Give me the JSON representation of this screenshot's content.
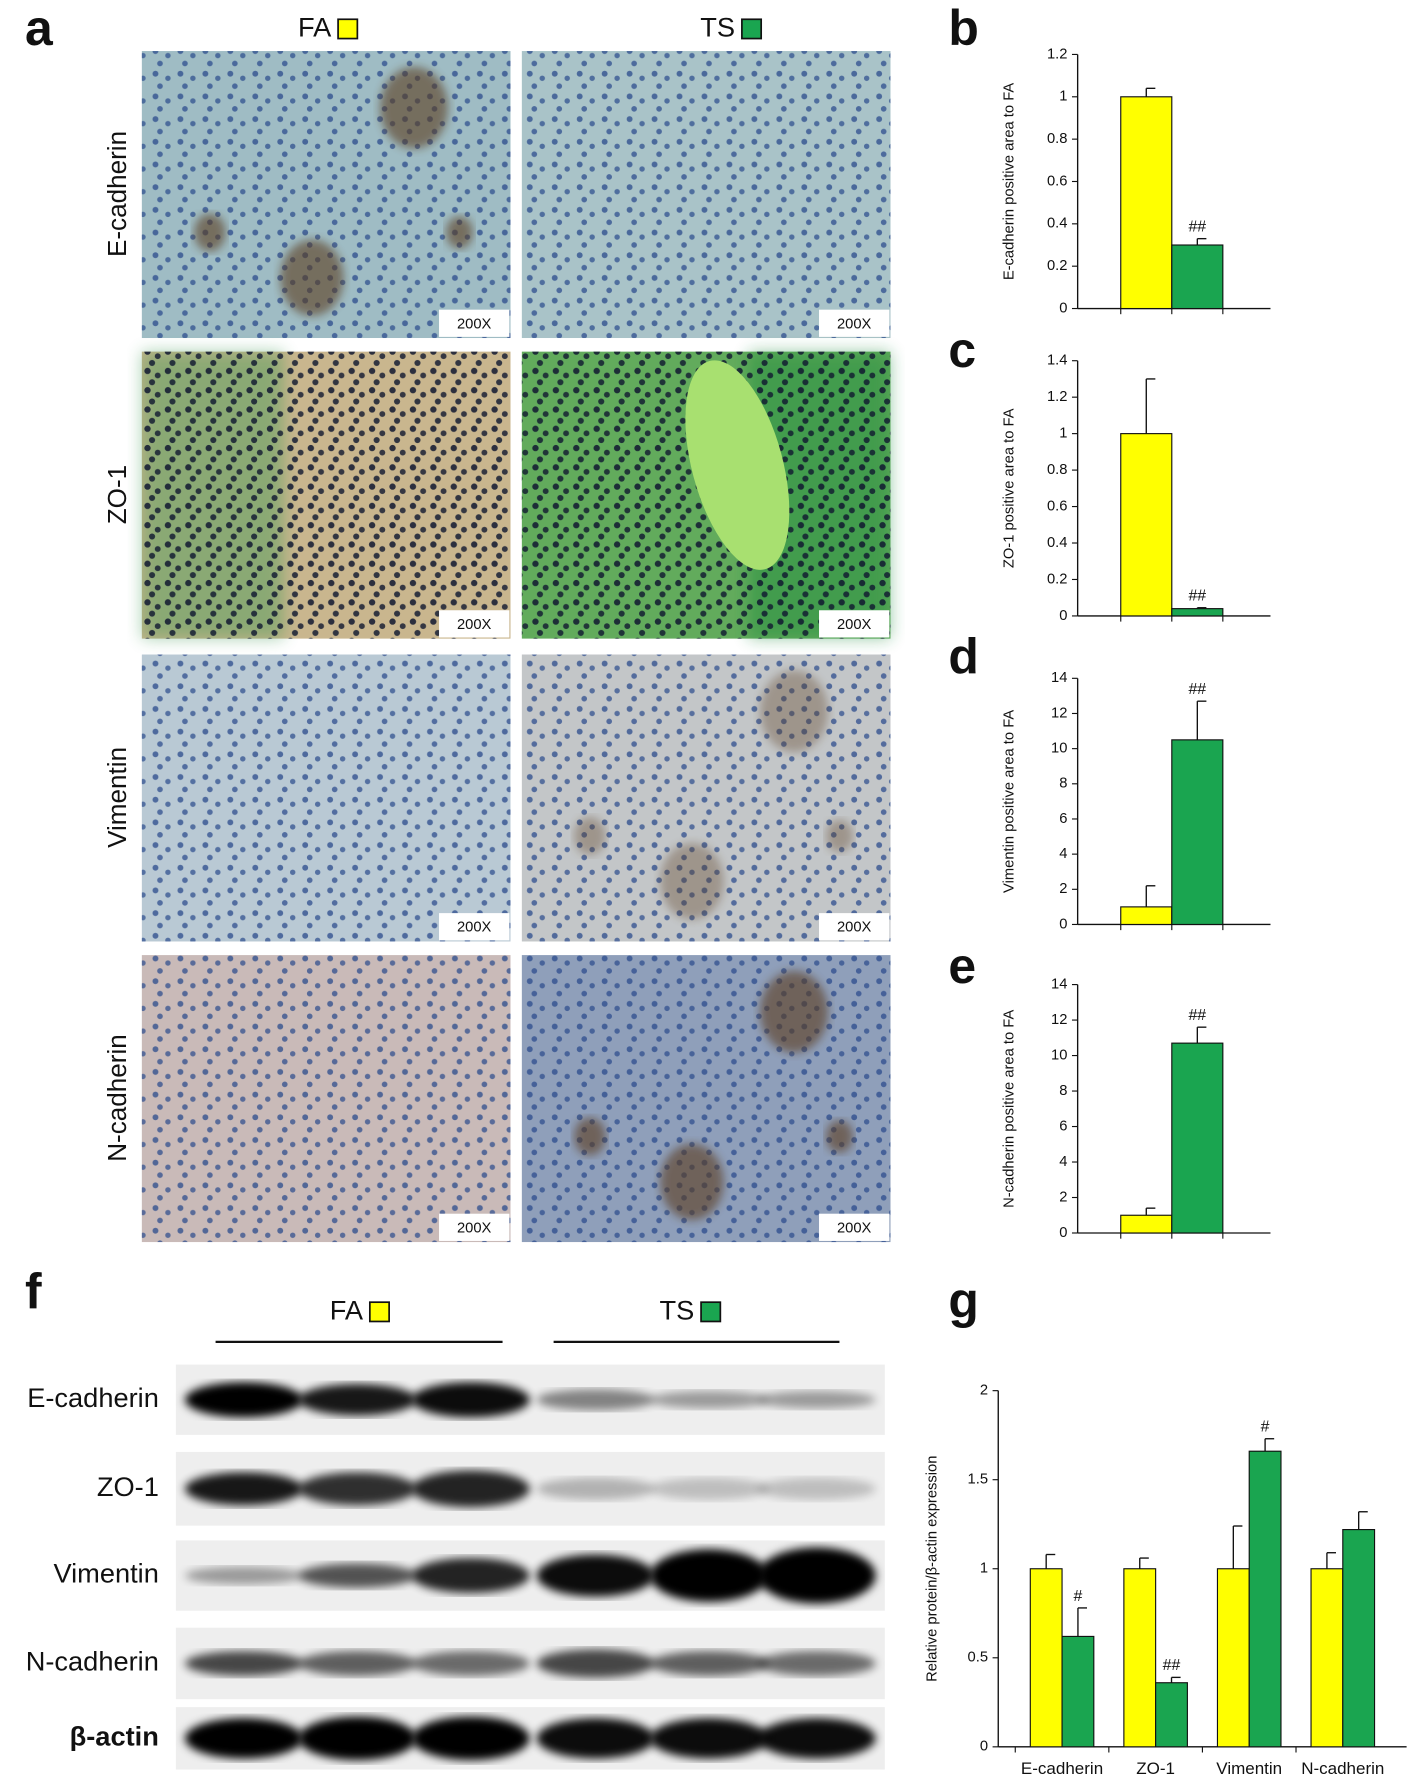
{
  "panel_labels": [
    "a",
    "b",
    "c",
    "d",
    "e",
    "f",
    "g"
  ],
  "groups": [
    "FA",
    "TS"
  ],
  "panel_a": {
    "rows": [
      "E-cadherin",
      "ZO-1",
      "Vimentin",
      "N-cadherin"
    ],
    "magnification": "200X"
  },
  "panel_f": {
    "rows": [
      "E-cadherin",
      "ZO-1",
      "Vimentin",
      "N-cadherin",
      "β-actin"
    ]
  },
  "chart_data": [
    {
      "type": "bar",
      "ylabel": "E-cadherin positive area to FA",
      "ylim": [
        0,
        1.2
      ],
      "yticks": [
        0,
        0.2,
        0.4,
        0.6,
        0.8,
        1,
        1.2
      ],
      "categories": [
        null
      ],
      "series": [
        {
          "color": "#ffff00",
          "values": [
            1
          ],
          "errors": [
            0.04
          ],
          "annotations": [
            null
          ]
        },
        {
          "color": "#1aa550",
          "values": [
            0.3
          ],
          "errors": [
            0.03
          ],
          "annotations": [
            "##"
          ]
        }
      ]
    },
    {
      "type": "bar",
      "ylabel": "ZO-1 positive area to FA",
      "ylim": [
        0,
        1.4
      ],
      "yticks": [
        0,
        0.2,
        0.4,
        0.6,
        0.8,
        1,
        1.2,
        1.4
      ],
      "categories": [
        null
      ],
      "series": [
        {
          "color": "#ffff00",
          "values": [
            1
          ],
          "errors": [
            0.3
          ],
          "annotations": [
            null
          ]
        },
        {
          "color": "#1aa550",
          "values": [
            0.04
          ],
          "errors": [
            0.005
          ],
          "annotations": [
            "##"
          ]
        }
      ]
    },
    {
      "type": "bar",
      "ylabel": "Vimentin positive area to FA",
      "ylim": [
        0,
        14
      ],
      "yticks": [
        0,
        2,
        4,
        6,
        8,
        10,
        12,
        14
      ],
      "categories": [
        null
      ],
      "series": [
        {
          "color": "#ffff00",
          "values": [
            1
          ],
          "errors": [
            1.2
          ],
          "annotations": [
            null
          ]
        },
        {
          "color": "#1aa550",
          "values": [
            10.5
          ],
          "errors": [
            2.2
          ],
          "annotations": [
            "##"
          ]
        }
      ]
    },
    {
      "type": "bar",
      "ylabel": "N-cadherin positive area to FA",
      "ylim": [
        0,
        14
      ],
      "yticks": [
        0,
        2,
        4,
        6,
        8,
        10,
        12,
        14
      ],
      "categories": [
        null
      ],
      "series": [
        {
          "color": "#ffff00",
          "values": [
            1
          ],
          "errors": [
            0.4
          ],
          "annotations": [
            null
          ]
        },
        {
          "color": "#1aa550",
          "values": [
            10.7
          ],
          "errors": [
            0.9
          ],
          "annotations": [
            "##"
          ]
        }
      ]
    },
    {
      "type": "bar",
      "ylabel": "Relative protein/β-actin expression",
      "ylim": [
        0,
        2
      ],
      "yticks": [
        0,
        0.5,
        1,
        1.5,
        2
      ],
      "categories": [
        "E-cadherin",
        "ZO-1",
        "Vimentin",
        "N-cadherin"
      ],
      "series": [
        {
          "color": "#ffff00",
          "values": [
            1,
            1,
            1,
            1
          ],
          "errors": [
            0.08,
            0.06,
            0.24,
            0.09
          ],
          "annotations": [
            null,
            null,
            null,
            null
          ]
        },
        {
          "color": "#1aa550",
          "values": [
            0.62,
            0.36,
            1.66,
            1.22
          ],
          "errors": [
            0.16,
            0.03,
            0.07,
            0.1
          ],
          "annotations": [
            "#",
            "##",
            "#",
            null
          ]
        }
      ]
    }
  ]
}
